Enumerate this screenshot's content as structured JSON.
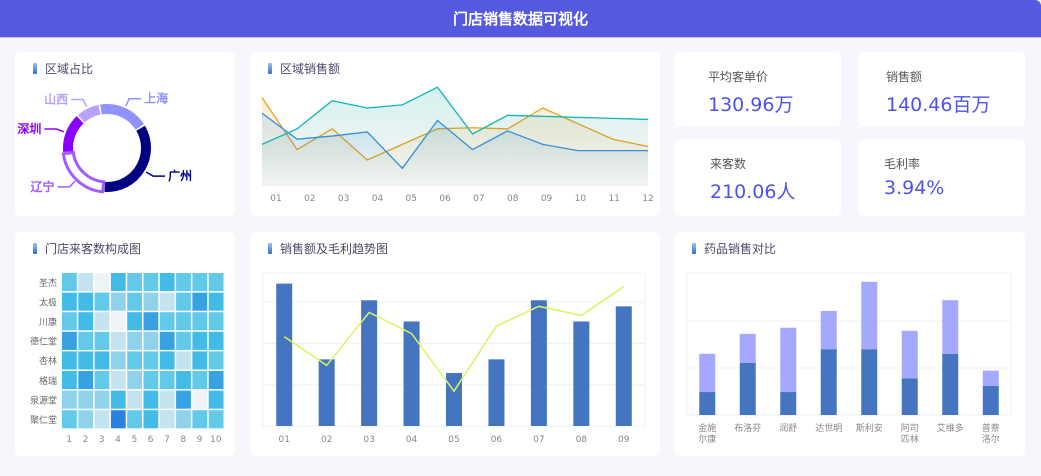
{
  "header": {
    "title": "门店销售数据可视化"
  },
  "region_share": {
    "title": "区域占比",
    "chart_data": {
      "type": "pie",
      "donut": true,
      "slices": [
        {
          "label": "上海",
          "value": 19,
          "color": "#8F92FF"
        },
        {
          "label": "广州",
          "value": 35,
          "color": "#000080"
        },
        {
          "label": "辽宁",
          "value": 22,
          "color": "#A35CFF"
        },
        {
          "label": "深圳",
          "value": 15,
          "color": "#8A00FF"
        },
        {
          "label": "山西",
          "value": 9,
          "color": "#B8A2FF"
        }
      ]
    }
  },
  "region_sales": {
    "title": "区域销售额",
    "chart_data": {
      "type": "area",
      "categories": [
        "01",
        "02",
        "03",
        "04",
        "05",
        "06",
        "07",
        "08",
        "09",
        "10",
        "11",
        "12"
      ],
      "series": [
        {
          "color": "#F0A21A",
          "values": [
            85,
            35,
            55,
            25,
            40,
            55,
            56,
            55,
            75,
            60,
            45,
            38
          ]
        },
        {
          "color": "#3A8FE0",
          "values": [
            70,
            45,
            48,
            52,
            17,
            63,
            35,
            53,
            40,
            34,
            34,
            34
          ]
        },
        {
          "color": "#13B4B4",
          "values": [
            40,
            55,
            82,
            75,
            78,
            95,
            50,
            68,
            67,
            66,
            65,
            64
          ]
        }
      ]
    }
  },
  "kpis": [
    {
      "label": "平均客单价",
      "value": "130.96万"
    },
    {
      "label": "销售额",
      "value": "140.46百万"
    },
    {
      "label": "来客数",
      "value": "210.06人"
    },
    {
      "label": "毛利率",
      "value": "3.94%"
    }
  ],
  "store_visitors": {
    "title": "门店来客数构成图",
    "chart_data": {
      "type": "heatmap",
      "rows": [
        "圣杰",
        "太极",
        "川康",
        "德仁堂",
        "杏林",
        "格瑞",
        "泉源堂",
        "聚仁堂"
      ],
      "cols": [
        "1",
        "2",
        "3",
        "4",
        "5",
        "6",
        "7",
        "8",
        "9",
        "10"
      ],
      "values": [
        [
          3,
          1,
          0,
          4,
          3,
          3,
          4,
          3,
          3,
          3
        ],
        [
          4,
          4,
          3,
          2,
          3,
          2,
          1,
          3,
          5,
          4
        ],
        [
          3,
          4,
          1,
          0,
          4,
          5,
          3,
          3,
          3,
          3
        ],
        [
          5,
          3,
          3,
          1,
          2,
          2,
          5,
          3,
          4,
          4
        ],
        [
          4,
          4,
          4,
          2,
          3,
          3,
          4,
          1,
          4,
          3
        ],
        [
          4,
          5,
          3,
          1,
          2,
          3,
          3,
          4,
          3,
          5
        ],
        [
          2,
          2,
          2,
          4,
          1,
          4,
          1,
          5,
          0,
          4
        ],
        [
          3,
          2,
          1,
          6,
          3,
          4,
          1,
          2,
          3,
          3
        ]
      ]
    }
  },
  "sales_trend": {
    "title": "销售额及毛利趋势图",
    "chart_data": {
      "type": "bar",
      "categories": [
        "01",
        "02",
        "03",
        "04",
        "05",
        "06",
        "07",
        "08",
        "09"
      ],
      "series": [
        {
          "type": "bar",
          "color": "#4575C0",
          "values": [
            94,
            44,
            83,
            69,
            35,
            44,
            83,
            69,
            79
          ]
        },
        {
          "type": "line",
          "color": "#D7F560",
          "values": [
            59,
            40,
            75,
            61,
            23,
            66,
            79,
            73,
            92
          ]
        }
      ],
      "ylim": [
        0,
        100
      ],
      "grid": true
    }
  },
  "drug_sales": {
    "title": "药品销售对比",
    "chart_data": {
      "type": "bar",
      "stacked": true,
      "categories": [
        "金施\n尔康",
        "布洛芬",
        "润舒",
        "达世明",
        "斯利安",
        "阿司\n匹林",
        "艾维多",
        "普萘\n洛尔"
      ],
      "series": [
        {
          "color": "#4575C0",
          "values": [
            15,
            34,
            15,
            43,
            43,
            24,
            40,
            19
          ]
        },
        {
          "color": "#A5A8FF",
          "values": [
            25,
            19,
            42,
            25,
            44,
            31,
            35,
            10
          ]
        }
      ],
      "ylim": [
        0,
        90
      ],
      "grid": true
    }
  }
}
